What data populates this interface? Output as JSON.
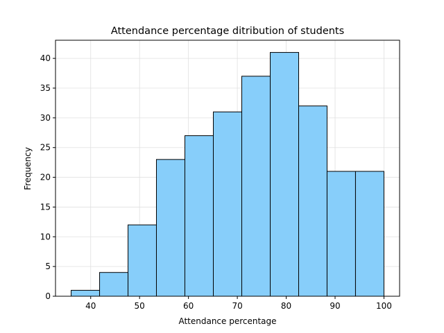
{
  "chart_data": {
    "type": "histogram",
    "title": "Attendance percentage ditribution of students",
    "xlabel": "Attendance percentage",
    "ylabel": "Frequency",
    "bins": [
      36,
      41.82,
      47.64,
      53.45,
      59.27,
      65.09,
      70.91,
      76.73,
      82.55,
      88.36,
      94.18,
      100
    ],
    "values": [
      1,
      4,
      12,
      23,
      27,
      31,
      37,
      41,
      32,
      21,
      21
    ],
    "color": "#87cefa",
    "edgecolor": "#000000",
    "xlim": [
      32.8,
      103.2
    ],
    "xticks": [
      40,
      50,
      60,
      70,
      80,
      90,
      100
    ],
    "ylim": [
      0,
      43.05
    ],
    "yticks": [
      0,
      5,
      10,
      15,
      20,
      25,
      30,
      35,
      40
    ],
    "grid": true
  }
}
